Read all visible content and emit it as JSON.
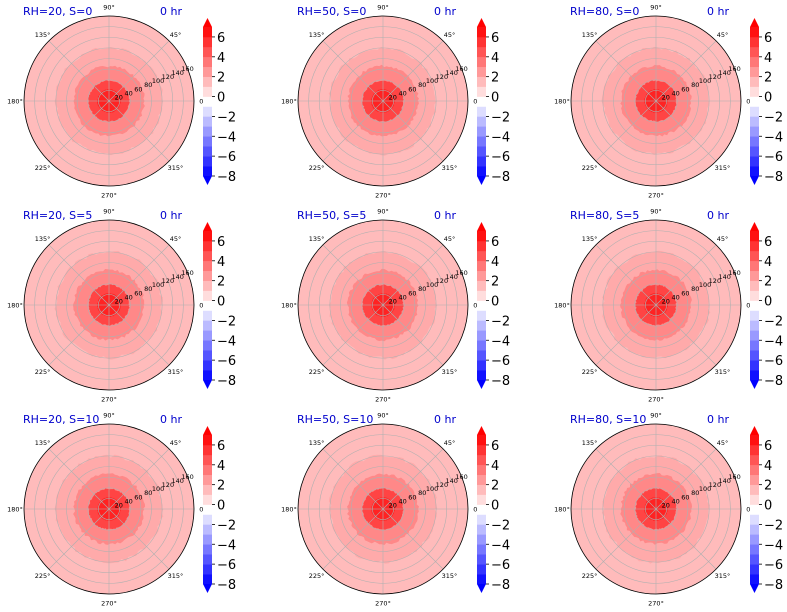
{
  "figure": {
    "time_label": "0 hr",
    "title_color": "#0000cc",
    "angle_tick_labels": [
      "0°",
      "45°",
      "90°",
      "135°",
      "180°",
      "225°",
      "270°",
      "315°"
    ],
    "radial_tick_labels": [
      "20",
      "40",
      "60",
      "80",
      "100",
      "120",
      "140",
      "160"
    ],
    "colorbar_tick_labels": [
      "6",
      "4",
      "2",
      "0",
      "−2",
      "−4",
      "−6",
      "−8"
    ],
    "colormap": "bwr",
    "colors": {
      "positive": "#ff0000",
      "negative": "#0000ff",
      "neutral": "#ffffff"
    }
  },
  "chart_data": [
    {
      "type": "polar-contour",
      "title": "RH=20, S=0",
      "time": "0 hr",
      "rlim": [
        0,
        160
      ],
      "clim": [
        -8,
        7
      ],
      "rings": [
        {
          "r": 22,
          "value": 6
        },
        {
          "r": 38,
          "value": 5
        },
        {
          "r": 66,
          "value": 3
        },
        {
          "r": 100,
          "value": 2
        },
        {
          "r": 160,
          "value": 1.5
        }
      ]
    },
    {
      "type": "polar-contour",
      "title": "RH=50, S=0",
      "time": "0 hr",
      "rlim": [
        0,
        160
      ],
      "clim": [
        -8,
        7
      ],
      "rings": [
        {
          "r": 22,
          "value": 6
        },
        {
          "r": 38,
          "value": 5
        },
        {
          "r": 66,
          "value": 3
        },
        {
          "r": 100,
          "value": 2
        },
        {
          "r": 160,
          "value": 1.5
        }
      ]
    },
    {
      "type": "polar-contour",
      "title": "RH=80, S=0",
      "time": "0 hr",
      "rlim": [
        0,
        160
      ],
      "clim": [
        -8,
        7
      ],
      "rings": [
        {
          "r": 22,
          "value": 6
        },
        {
          "r": 38,
          "value": 5
        },
        {
          "r": 66,
          "value": 3
        },
        {
          "r": 100,
          "value": 2
        },
        {
          "r": 160,
          "value": 1.5
        }
      ]
    },
    {
      "type": "polar-contour",
      "title": "RH=20, S=5",
      "time": "0 hr",
      "rlim": [
        0,
        160
      ],
      "clim": [
        -8,
        7
      ],
      "rings": [
        {
          "r": 22,
          "value": 6
        },
        {
          "r": 38,
          "value": 5
        },
        {
          "r": 66,
          "value": 3
        },
        {
          "r": 100,
          "value": 2
        },
        {
          "r": 160,
          "value": 1.5
        }
      ]
    },
    {
      "type": "polar-contour",
      "title": "RH=50, S=5",
      "time": "0 hr",
      "rlim": [
        0,
        160
      ],
      "clim": [
        -8,
        7
      ],
      "rings": [
        {
          "r": 22,
          "value": 6
        },
        {
          "r": 38,
          "value": 5
        },
        {
          "r": 66,
          "value": 3
        },
        {
          "r": 100,
          "value": 2
        },
        {
          "r": 160,
          "value": 1.5
        }
      ]
    },
    {
      "type": "polar-contour",
      "title": "RH=80, S=5",
      "time": "0 hr",
      "rlim": [
        0,
        160
      ],
      "clim": [
        -8,
        7
      ],
      "rings": [
        {
          "r": 22,
          "value": 6
        },
        {
          "r": 38,
          "value": 5
        },
        {
          "r": 66,
          "value": 3
        },
        {
          "r": 100,
          "value": 2
        },
        {
          "r": 160,
          "value": 1.5
        }
      ]
    },
    {
      "type": "polar-contour",
      "title": "RH=20, S=10",
      "time": "0 hr",
      "rlim": [
        0,
        160
      ],
      "clim": [
        -8,
        7
      ],
      "rings": [
        {
          "r": 22,
          "value": 6
        },
        {
          "r": 38,
          "value": 5
        },
        {
          "r": 66,
          "value": 3
        },
        {
          "r": 100,
          "value": 2
        },
        {
          "r": 160,
          "value": 1.5
        }
      ]
    },
    {
      "type": "polar-contour",
      "title": "RH=50, S=10",
      "time": "0 hr",
      "rlim": [
        0,
        160
      ],
      "clim": [
        -8,
        7
      ],
      "rings": [
        {
          "r": 22,
          "value": 6
        },
        {
          "r": 38,
          "value": 5
        },
        {
          "r": 66,
          "value": 3
        },
        {
          "r": 100,
          "value": 2
        },
        {
          "r": 160,
          "value": 1.5
        }
      ]
    },
    {
      "type": "polar-contour",
      "title": "RH=80, S=10",
      "time": "0 hr",
      "rlim": [
        0,
        160
      ],
      "clim": [
        -8,
        7
      ],
      "rings": [
        {
          "r": 22,
          "value": 6
        },
        {
          "r": 38,
          "value": 5
        },
        {
          "r": 66,
          "value": 3
        },
        {
          "r": 100,
          "value": 2
        },
        {
          "r": 160,
          "value": 1.5
        }
      ]
    }
  ]
}
